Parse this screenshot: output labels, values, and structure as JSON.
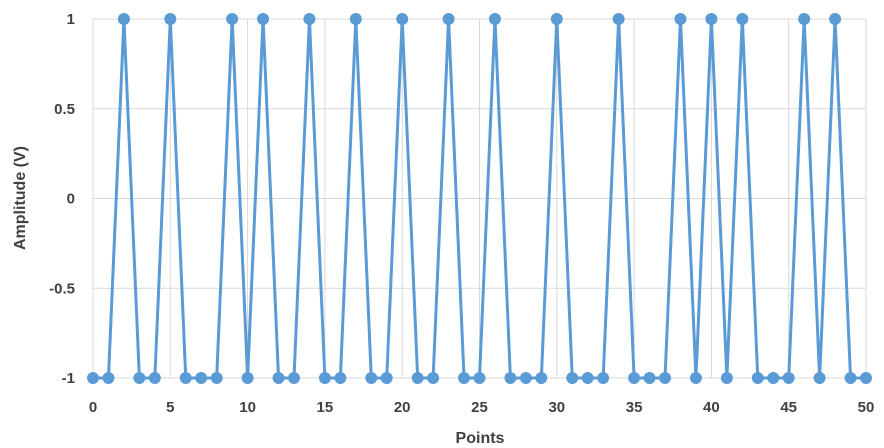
{
  "chart_data": {
    "type": "line",
    "xlabel": "Points",
    "ylabel": "Amplitude (V)",
    "xlim": [
      0,
      50
    ],
    "ylim": [
      -1,
      1
    ],
    "x_ticks": [
      0,
      5,
      10,
      15,
      20,
      25,
      30,
      35,
      40,
      45,
      50
    ],
    "x_tick_labels": [
      "0",
      "5",
      "10",
      "15",
      "20",
      "25",
      "30",
      "35",
      "40",
      "45",
      "50"
    ],
    "y_ticks": [
      1,
      0.5,
      0,
      -0.5,
      -1
    ],
    "y_tick_labels": [
      "1",
      "0.5",
      "0",
      "-0.5",
      "-1"
    ],
    "grid": true,
    "legend": "none",
    "series": [
      {
        "color": "#5b9bd5",
        "x": [
          0,
          1,
          2,
          3,
          4,
          5,
          6,
          7,
          8,
          9,
          10,
          11,
          12,
          13,
          14,
          15,
          16,
          17,
          18,
          19,
          20,
          21,
          22,
          23,
          24,
          25,
          26,
          27,
          28,
          29,
          30,
          31,
          32,
          33,
          34,
          35,
          36,
          37,
          38,
          39,
          40,
          41,
          42,
          43,
          44,
          45,
          46,
          47,
          48,
          49,
          50
        ],
        "y": [
          -1,
          -1,
          1,
          -1,
          -1,
          1,
          -1,
          -1,
          -1,
          1,
          -1,
          1,
          -1,
          -1,
          1,
          -1,
          -1,
          1,
          -1,
          -1,
          1,
          -1,
          -1,
          1,
          -1,
          -1,
          1,
          -1,
          -1,
          -1,
          1,
          -1,
          -1,
          -1,
          1,
          -1,
          -1,
          -1,
          1,
          -1,
          1,
          -1,
          1,
          -1,
          -1,
          -1,
          1,
          -1,
          1,
          -1,
          -1
        ]
      }
    ]
  }
}
